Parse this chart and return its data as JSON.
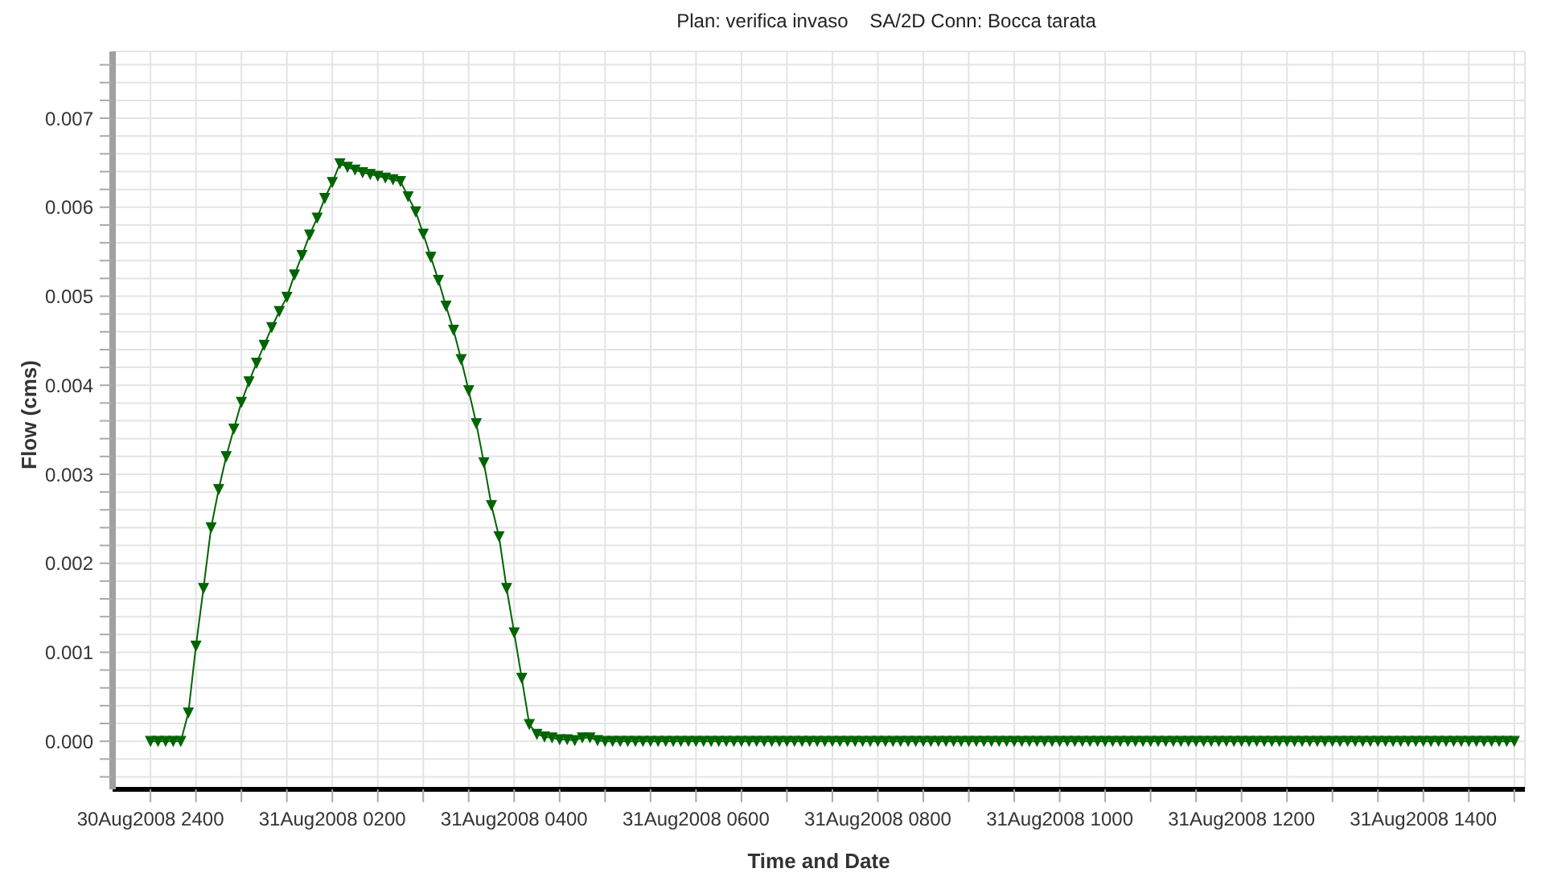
{
  "chart_data": {
    "type": "line",
    "title": "Plan: verifica invaso    SA/2D Conn: Bocca tarata",
    "xlabel": "Time and Date",
    "ylabel": "Flow (cms)",
    "x": [
      "2008-08-31T00:00",
      "2008-08-31T00:05",
      "2008-08-31T00:10",
      "2008-08-31T00:15",
      "2008-08-31T00:20",
      "2008-08-31T00:25",
      "2008-08-31T00:30",
      "2008-08-31T00:35",
      "2008-08-31T00:40",
      "2008-08-31T00:45",
      "2008-08-31T00:50",
      "2008-08-31T00:55",
      "2008-08-31T01:00",
      "2008-08-31T01:05",
      "2008-08-31T01:10",
      "2008-08-31T01:15",
      "2008-08-31T01:20",
      "2008-08-31T01:25",
      "2008-08-31T01:30",
      "2008-08-31T01:35",
      "2008-08-31T01:40",
      "2008-08-31T01:45",
      "2008-08-31T01:50",
      "2008-08-31T01:55",
      "2008-08-31T02:00",
      "2008-08-31T02:05",
      "2008-08-31T02:10",
      "2008-08-31T02:15",
      "2008-08-31T02:20",
      "2008-08-31T02:25",
      "2008-08-31T02:30",
      "2008-08-31T02:35",
      "2008-08-31T02:40",
      "2008-08-31T02:45",
      "2008-08-31T02:50",
      "2008-08-31T02:55",
      "2008-08-31T03:00",
      "2008-08-31T03:05",
      "2008-08-31T03:10",
      "2008-08-31T03:15",
      "2008-08-31T03:20",
      "2008-08-31T03:25",
      "2008-08-31T03:30",
      "2008-08-31T03:35",
      "2008-08-31T03:40",
      "2008-08-31T03:45",
      "2008-08-31T03:50",
      "2008-08-31T03:55",
      "2008-08-31T04:00",
      "2008-08-31T04:05",
      "2008-08-31T04:10",
      "2008-08-31T04:15",
      "2008-08-31T04:20",
      "2008-08-31T04:25",
      "2008-08-31T04:30",
      "2008-08-31T04:35",
      "2008-08-31T04:40",
      "2008-08-31T04:45",
      "2008-08-31T04:50",
      "2008-08-31T04:55",
      "2008-08-31T05:00",
      "2008-08-31T05:05",
      "2008-08-31T05:10",
      "2008-08-31T05:15",
      "2008-08-31T05:20",
      "2008-08-31T05:25",
      "2008-08-31T05:30",
      "2008-08-31T05:35",
      "2008-08-31T05:40",
      "2008-08-31T05:45",
      "2008-08-31T05:50",
      "2008-08-31T05:55",
      "2008-08-31T06:00",
      "2008-08-31T06:05",
      "2008-08-31T06:10",
      "2008-08-31T06:15",
      "2008-08-31T06:20",
      "2008-08-31T06:25",
      "2008-08-31T06:30",
      "2008-08-31T06:35",
      "2008-08-31T06:40",
      "2008-08-31T06:45",
      "2008-08-31T06:50",
      "2008-08-31T06:55",
      "2008-08-31T07:00",
      "2008-08-31T07:05",
      "2008-08-31T07:10",
      "2008-08-31T07:15",
      "2008-08-31T07:20",
      "2008-08-31T07:25",
      "2008-08-31T07:30",
      "2008-08-31T07:35",
      "2008-08-31T07:40",
      "2008-08-31T07:45",
      "2008-08-31T07:50",
      "2008-08-31T07:55",
      "2008-08-31T08:00",
      "2008-08-31T08:05",
      "2008-08-31T08:10",
      "2008-08-31T08:15",
      "2008-08-31T08:20",
      "2008-08-31T08:25",
      "2008-08-31T08:30",
      "2008-08-31T08:35",
      "2008-08-31T08:40",
      "2008-08-31T08:45",
      "2008-08-31T08:50",
      "2008-08-31T08:55",
      "2008-08-31T09:00",
      "2008-08-31T09:05",
      "2008-08-31T09:10",
      "2008-08-31T09:15",
      "2008-08-31T09:20",
      "2008-08-31T09:25",
      "2008-08-31T09:30",
      "2008-08-31T09:35",
      "2008-08-31T09:40",
      "2008-08-31T09:45",
      "2008-08-31T09:50",
      "2008-08-31T09:55",
      "2008-08-31T10:00",
      "2008-08-31T10:05",
      "2008-08-31T10:10",
      "2008-08-31T10:15",
      "2008-08-31T10:20",
      "2008-08-31T10:25",
      "2008-08-31T10:30",
      "2008-08-31T10:35",
      "2008-08-31T10:40",
      "2008-08-31T10:45",
      "2008-08-31T10:50",
      "2008-08-31T10:55",
      "2008-08-31T11:00",
      "2008-08-31T11:05",
      "2008-08-31T11:10",
      "2008-08-31T11:15",
      "2008-08-31T11:20",
      "2008-08-31T11:25",
      "2008-08-31T11:30",
      "2008-08-31T11:35",
      "2008-08-31T11:40",
      "2008-08-31T11:45",
      "2008-08-31T11:50",
      "2008-08-31T11:55",
      "2008-08-31T12:00",
      "2008-08-31T12:05",
      "2008-08-31T12:10",
      "2008-08-31T12:15",
      "2008-08-31T12:20",
      "2008-08-31T12:25",
      "2008-08-31T12:30",
      "2008-08-31T12:35",
      "2008-08-31T12:40",
      "2008-08-31T12:45",
      "2008-08-31T12:50",
      "2008-08-31T12:55",
      "2008-08-31T13:00",
      "2008-08-31T13:05",
      "2008-08-31T13:10",
      "2008-08-31T13:15",
      "2008-08-31T13:20",
      "2008-08-31T13:25",
      "2008-08-31T13:30",
      "2008-08-31T13:35",
      "2008-08-31T13:40",
      "2008-08-31T13:45",
      "2008-08-31T13:50",
      "2008-08-31T13:55",
      "2008-08-31T14:00",
      "2008-08-31T14:05",
      "2008-08-31T14:10",
      "2008-08-31T14:15",
      "2008-08-31T14:20",
      "2008-08-31T14:25",
      "2008-08-31T14:30",
      "2008-08-31T14:35",
      "2008-08-31T14:40",
      "2008-08-31T14:45",
      "2008-08-31T14:50",
      "2008-08-31T14:55",
      "2008-08-31T15:00"
    ],
    "series": [
      {
        "color": "#006400",
        "values": [
          0,
          0,
          0,
          0,
          0,
          0.00032,
          0.00107,
          0.00172,
          0.0024,
          0.00283,
          0.0032,
          0.00351,
          0.00381,
          0.00404,
          0.00425,
          0.00445,
          0.00465,
          0.00483,
          0.00499,
          0.00524,
          0.00546,
          0.00569,
          0.00588,
          0.0061,
          0.00628,
          0.00649,
          0.00645,
          0.00642,
          0.00639,
          0.00637,
          0.00635,
          0.00633,
          0.00631,
          0.00629,
          0.00612,
          0.00595,
          0.0057,
          0.00544,
          0.00518,
          0.00489,
          0.00462,
          0.00429,
          0.00394,
          0.00357,
          0.00313,
          0.00265,
          0.0023,
          0.00172,
          0.00122,
          0.00071,
          0.00019,
          8e-05,
          5e-05,
          4e-05,
          2e-05,
          2e-05,
          1e-05,
          4e-05,
          4e-05,
          1e-05,
          0,
          0,
          0,
          0,
          0,
          0,
          0,
          0,
          0,
          0,
          0,
          0,
          0,
          0,
          0,
          0,
          0,
          0,
          0,
          0,
          0,
          0,
          0,
          0,
          0,
          0,
          0,
          0,
          0,
          0,
          0,
          0,
          0,
          0,
          0,
          0,
          0,
          0,
          0,
          0,
          0,
          0,
          0,
          0,
          0,
          0,
          0,
          0,
          0,
          0,
          0,
          0,
          0,
          0,
          0,
          0,
          0,
          0,
          0,
          0,
          0,
          0,
          0,
          0,
          0,
          0,
          0,
          0,
          0,
          0,
          0,
          0,
          0,
          0,
          0,
          0,
          0,
          0,
          0,
          0,
          0,
          0,
          0,
          0,
          0,
          0,
          0,
          0,
          0,
          0,
          0,
          0,
          0,
          0,
          0,
          0,
          0,
          0,
          0,
          0,
          0,
          0,
          0,
          0,
          0,
          0,
          0,
          0,
          0,
          0,
          0,
          0,
          0,
          0,
          0,
          0,
          0,
          0,
          0,
          0,
          0
        ]
      }
    ],
    "xlim": [
      "2008-08-30T23:35",
      "2008-08-31T15:07"
    ],
    "xticks": [
      {
        "value": "2008-08-30T24:00",
        "label": "30Aug2008 2400"
      },
      {
        "value": "2008-08-31T00:30",
        "label": null
      },
      {
        "value": "2008-08-31T01:00",
        "label": null
      },
      {
        "value": "2008-08-31T01:30",
        "label": null
      },
      {
        "value": "2008-08-31T02:00",
        "label": "31Aug2008 0200"
      },
      {
        "value": "2008-08-31T02:30",
        "label": null
      },
      {
        "value": "2008-08-31T03:00",
        "label": null
      },
      {
        "value": "2008-08-31T03:30",
        "label": null
      },
      {
        "value": "2008-08-31T04:00",
        "label": "31Aug2008 0400"
      },
      {
        "value": "2008-08-31T04:30",
        "label": null
      },
      {
        "value": "2008-08-31T05:00",
        "label": null
      },
      {
        "value": "2008-08-31T05:30",
        "label": null
      },
      {
        "value": "2008-08-31T06:00",
        "label": "31Aug2008 0600"
      },
      {
        "value": "2008-08-31T06:30",
        "label": null
      },
      {
        "value": "2008-08-31T07:00",
        "label": null
      },
      {
        "value": "2008-08-31T07:30",
        "label": null
      },
      {
        "value": "2008-08-31T08:00",
        "label": "31Aug2008 0800"
      },
      {
        "value": "2008-08-31T08:30",
        "label": null
      },
      {
        "value": "2008-08-31T09:00",
        "label": null
      },
      {
        "value": "2008-08-31T09:30",
        "label": null
      },
      {
        "value": "2008-08-31T10:00",
        "label": "31Aug2008 1000"
      },
      {
        "value": "2008-08-31T10:30",
        "label": null
      },
      {
        "value": "2008-08-31T11:00",
        "label": null
      },
      {
        "value": "2008-08-31T11:30",
        "label": null
      },
      {
        "value": "2008-08-31T12:00",
        "label": "31Aug2008 1200"
      },
      {
        "value": "2008-08-31T12:30",
        "label": null
      },
      {
        "value": "2008-08-31T13:00",
        "label": null
      },
      {
        "value": "2008-08-31T13:30",
        "label": null
      },
      {
        "value": "2008-08-31T14:00",
        "label": "31Aug2008 1400"
      },
      {
        "value": "2008-08-31T14:30",
        "label": null
      },
      {
        "value": "2008-08-31T15:00",
        "label": null
      }
    ],
    "ylim": [
      -0.00054,
      0.00775
    ],
    "yticks": [
      {
        "value": -0.0004,
        "label": null
      },
      {
        "value": -0.0002,
        "label": null
      },
      {
        "value": 0,
        "label": "0.000"
      },
      {
        "value": 0.0002,
        "label": null
      },
      {
        "value": 0.0004,
        "label": null
      },
      {
        "value": 0.0006,
        "label": null
      },
      {
        "value": 0.0008,
        "label": null
      },
      0.001,
      {
        "value": 0.0012,
        "label": null
      },
      {
        "value": 0.0014,
        "label": null
      },
      {
        "value": 0.0016,
        "label": null
      },
      {
        "value": 0.0018,
        "label": null
      },
      0.002,
      {
        "value": 0.0022,
        "label": null
      },
      {
        "value": 0.0024,
        "label": null
      },
      {
        "value": 0.0026,
        "label": null
      },
      {
        "value": 0.0028,
        "label": null
      },
      0.003,
      {
        "value": 0.0032,
        "label": null
      },
      {
        "value": 0.0034,
        "label": null
      },
      {
        "value": 0.0036,
        "label": null
      },
      {
        "value": 0.0038,
        "label": null
      },
      0.004,
      {
        "value": 0.0042,
        "label": null
      },
      {
        "value": 0.0044,
        "label": null
      },
      {
        "value": 0.0046,
        "label": null
      },
      {
        "value": 0.0048,
        "label": null
      },
      0.005,
      {
        "value": 0.0052,
        "label": null
      },
      {
        "value": 0.0054,
        "label": null
      },
      {
        "value": 0.0056,
        "label": null
      },
      {
        "value": 0.0058,
        "label": null
      },
      0.006,
      {
        "value": 0.0062,
        "label": null
      },
      {
        "value": 0.0064,
        "label": null
      },
      {
        "value": 0.0066,
        "label": null
      },
      {
        "value": 0.0068,
        "label": null
      },
      0.007,
      {
        "value": 0.0072,
        "label": null
      },
      {
        "value": 0.0074,
        "label": null
      },
      {
        "value": 0.0076,
        "label": null
      }
    ],
    "grid": true,
    "marker": "triangle",
    "line_style": "solid"
  }
}
